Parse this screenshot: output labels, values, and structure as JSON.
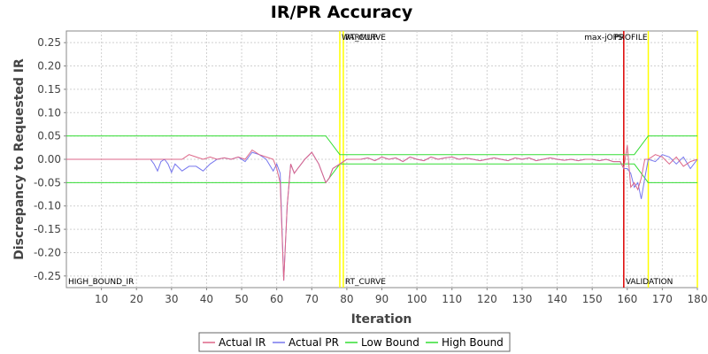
{
  "chart_data": {
    "type": "line",
    "title": "IR/PR Accuracy",
    "xlabel": "Iteration",
    "ylabel": "Discrepancy to Requested IR",
    "xlim": [
      0,
      180
    ],
    "ylim": [
      -0.275,
      0.275
    ],
    "x_ticks": [
      10,
      20,
      30,
      40,
      50,
      60,
      70,
      80,
      90,
      100,
      110,
      120,
      130,
      140,
      150,
      160,
      170,
      180
    ],
    "y_ticks": [
      0.25,
      0.2,
      0.15,
      0.1,
      0.05,
      0.0,
      -0.05,
      -0.1,
      -0.15,
      -0.2,
      -0.25
    ],
    "y_tick_labels": [
      "0.25",
      "0.20",
      "0.15",
      "0.10",
      "0.05",
      "0.00",
      "-0.05",
      "-0.10",
      "-0.15",
      "-0.20",
      "-0.25"
    ],
    "grid": true,
    "legend_position": "bottom",
    "markers": [
      {
        "x": 78,
        "label": "WARMUP",
        "color": "#ffff00"
      },
      {
        "x": 79,
        "label": "RT_CURVE",
        "color": "#ffff00"
      },
      {
        "x": 159,
        "label": "max-jOPS",
        "color": "#dd0000"
      },
      {
        "x": 166,
        "label": "PROFILE",
        "color": "#ffff00"
      },
      {
        "x": 180,
        "label": "",
        "color": "#ffff00"
      }
    ],
    "bottom_labels": [
      {
        "x": 0,
        "label": "HIGH_BOUND_IR"
      },
      {
        "x": 79,
        "label": "RT_CURVE"
      },
      {
        "x": 159,
        "label": "VALIDATION"
      }
    ],
    "series": [
      {
        "name": "Actual IR",
        "color": "#dd6688",
        "x": [
          0,
          10,
          20,
          30,
          33,
          35,
          37,
          39,
          41,
          43,
          45,
          47,
          49,
          51,
          53,
          55,
          57,
          59,
          60,
          61,
          62,
          63,
          64,
          65,
          66,
          67,
          68,
          70,
          72,
          74,
          75,
          76,
          78,
          80,
          82,
          84,
          86,
          88,
          90,
          92,
          94,
          96,
          98,
          100,
          102,
          104,
          106,
          108,
          110,
          112,
          114,
          116,
          118,
          120,
          122,
          124,
          126,
          128,
          130,
          132,
          134,
          136,
          138,
          140,
          142,
          144,
          146,
          148,
          150,
          152,
          154,
          156,
          158,
          159,
          160,
          161,
          162,
          163,
          164,
          165,
          166,
          168,
          170,
          172,
          174,
          176,
          178,
          180
        ],
        "y": [
          0.0,
          0.0,
          0.0,
          0.0,
          0.0,
          0.01,
          0.005,
          0.0,
          0.005,
          0.0,
          0.003,
          0.0,
          0.005,
          0.0,
          0.02,
          0.01,
          0.005,
          0.0,
          -0.02,
          -0.05,
          -0.26,
          -0.1,
          -0.01,
          -0.03,
          -0.02,
          -0.01,
          0.0,
          0.015,
          -0.01,
          -0.05,
          -0.04,
          -0.02,
          -0.01,
          0.0,
          0.0,
          0.0,
          0.003,
          -0.003,
          0.005,
          0.0,
          0.003,
          -0.005,
          0.005,
          0.0,
          -0.003,
          0.005,
          0.0,
          0.003,
          0.005,
          0.0,
          0.003,
          0.0,
          -0.003,
          0.0,
          0.003,
          0.0,
          -0.003,
          0.003,
          0.0,
          0.003,
          -0.003,
          0.0,
          0.003,
          0.0,
          -0.002,
          0.0,
          -0.003,
          0.0,
          0.0,
          -0.003,
          0.0,
          -0.005,
          -0.005,
          -0.02,
          0.03,
          -0.06,
          -0.05,
          -0.065,
          -0.04,
          0.0,
          0.0,
          0.01,
          0.005,
          -0.01,
          0.005,
          -0.015,
          -0.005,
          0.0
        ]
      },
      {
        "name": "Actual PR",
        "color": "#7777ee",
        "x": [
          0,
          10,
          20,
          24,
          25,
          26,
          27,
          28,
          29,
          30,
          31,
          33,
          35,
          37,
          39,
          41,
          43,
          45,
          47,
          49,
          51,
          53,
          55,
          57,
          59,
          60,
          61,
          62,
          63,
          64,
          65,
          66,
          67,
          68,
          70,
          72,
          74,
          75,
          76,
          78,
          80,
          82,
          84,
          86,
          88,
          90,
          92,
          94,
          96,
          98,
          100,
          102,
          104,
          106,
          108,
          110,
          112,
          114,
          116,
          118,
          120,
          122,
          124,
          126,
          128,
          130,
          132,
          134,
          136,
          138,
          140,
          142,
          144,
          146,
          148,
          150,
          152,
          154,
          156,
          158,
          159,
          160,
          161,
          162,
          163,
          164,
          165,
          166,
          168,
          170,
          172,
          174,
          176,
          178,
          180
        ],
        "y": [
          0.0,
          0.0,
          0.0,
          0.0,
          -0.01,
          -0.025,
          -0.005,
          0.0,
          -0.01,
          -0.028,
          -0.01,
          -0.025,
          -0.015,
          -0.015,
          -0.025,
          -0.01,
          0.0,
          0.003,
          0.0,
          0.005,
          -0.005,
          0.015,
          0.01,
          0.0,
          -0.025,
          -0.01,
          -0.03,
          -0.26,
          -0.1,
          -0.01,
          -0.03,
          -0.02,
          -0.01,
          0.0,
          0.015,
          -0.01,
          -0.05,
          -0.04,
          -0.02,
          -0.01,
          0.0,
          0.0,
          0.0,
          0.003,
          -0.003,
          0.005,
          0.0,
          0.003,
          -0.005,
          0.005,
          0.0,
          -0.003,
          0.005,
          0.0,
          0.003,
          0.005,
          0.0,
          0.003,
          0.0,
          -0.003,
          0.0,
          0.003,
          0.0,
          -0.003,
          0.003,
          0.0,
          0.003,
          -0.003,
          0.0,
          0.003,
          0.0,
          -0.002,
          0.0,
          -0.003,
          0.0,
          0.0,
          -0.003,
          0.0,
          -0.005,
          -0.005,
          -0.02,
          -0.02,
          -0.03,
          -0.06,
          -0.05,
          -0.085,
          -0.04,
          0.0,
          -0.005,
          0.01,
          0.005,
          -0.01,
          0.005,
          -0.02,
          0.0
        ]
      },
      {
        "name": "Low Bound",
        "color": "#33dd33",
        "x": [
          0,
          179,
          180
        ],
        "y": [
          -0.05,
          -0.05,
          -0.05
        ]
      },
      {
        "name": "High Bound",
        "color": "#33dd33",
        "x": [
          0,
          74,
          78,
          162,
          166,
          180
        ],
        "y": [
          0.05,
          0.05,
          0.01,
          0.01,
          0.05,
          0.05
        ]
      }
    ],
    "low_bound_full": {
      "x": [
        0,
        74,
        78,
        162,
        166,
        180
      ],
      "y": [
        -0.05,
        -0.05,
        -0.01,
        -0.01,
        -0.05,
        -0.05
      ]
    }
  }
}
